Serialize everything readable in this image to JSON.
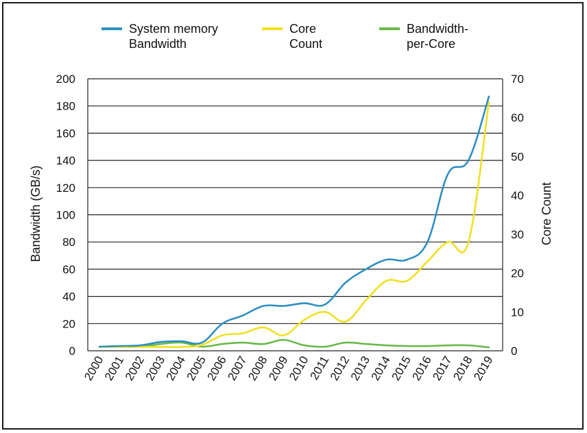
{
  "chart_data": {
    "type": "line",
    "categories": [
      "2000",
      "2001",
      "2002",
      "2003",
      "2004",
      "2005",
      "2006",
      "2007",
      "2008",
      "2009",
      "2010",
      "2011",
      "2012",
      "2013",
      "2014",
      "2015",
      "2016",
      "2017",
      "2018",
      "2019"
    ],
    "y_left": {
      "label": "Bandwidth (GB/s)",
      "ylim": [
        0,
        200
      ],
      "ticks": [
        "0",
        "20",
        "40",
        "60",
        "80",
        "100",
        "120",
        "140",
        "160",
        "180",
        "200"
      ]
    },
    "y_right": {
      "label": "Core Count",
      "ylim": [
        0,
        70
      ],
      "ticks": [
        "0",
        "10",
        "20",
        "30",
        "40",
        "50",
        "60",
        "70"
      ]
    },
    "grid": true,
    "legend_position": "top",
    "series": [
      {
        "name_lines": [
          "System memory",
          "Bandwidth"
        ],
        "axis": "left",
        "color": "#2e8fc0",
        "values": [
          3,
          3.5,
          4,
          6.5,
          7,
          6,
          20,
          26,
          33,
          33,
          35,
          34,
          50,
          60,
          67,
          67,
          80,
          130,
          140,
          187
        ]
      },
      {
        "name_lines": [
          "Core",
          "Count"
        ],
        "axis": "right",
        "color": "#f0e020",
        "values": [
          1,
          1,
          1,
          1,
          1,
          1.5,
          4,
          4.5,
          6,
          4,
          8,
          10,
          7.5,
          13,
          18,
          18,
          23,
          28,
          28,
          64
        ]
      },
      {
        "name_lines": [
          "Bandwidth-",
          "per-Core"
        ],
        "axis": "left",
        "color": "#6ab84a",
        "values": [
          3,
          3,
          3,
          5,
          6,
          3,
          5,
          6,
          5,
          8,
          4,
          3,
          6,
          5,
          4,
          3.5,
          3.5,
          4,
          4,
          2.5
        ]
      }
    ]
  }
}
